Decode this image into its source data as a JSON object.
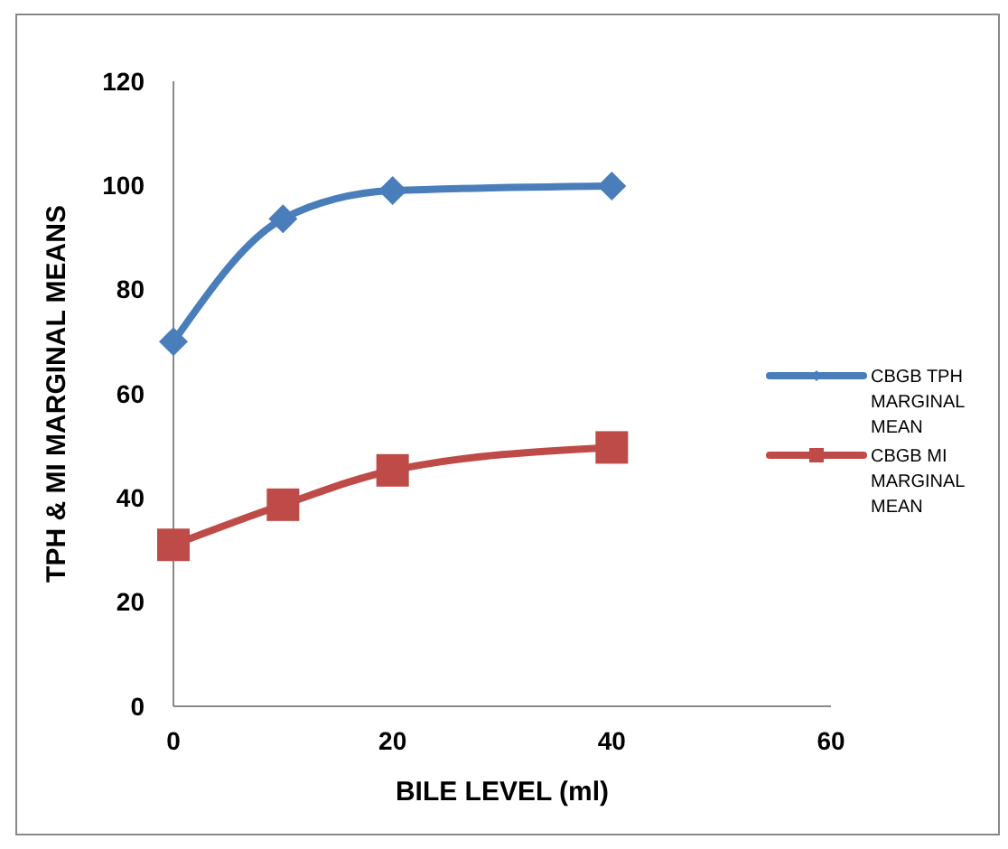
{
  "chart_data": {
    "type": "line",
    "xlabel": "BILE LEVEL (ml)",
    "ylabel": "TPH & MI MARGINAL MEANS",
    "x": [
      0,
      10,
      20,
      40
    ],
    "xlim": [
      0,
      60
    ],
    "xticks": [
      0,
      20,
      40,
      60
    ],
    "ylim": [
      0,
      120
    ],
    "yticks": [
      0,
      20,
      40,
      60,
      80,
      100,
      120
    ],
    "grid": false,
    "legend": "right",
    "series": [
      {
        "name": "CBGB TPH MARGINAL MEAN",
        "color": "#4a7ebb",
        "marker": "diamond",
        "values": [
          70,
          93.6,
          99,
          99.9
        ]
      },
      {
        "name": "CBGB MI MARGINAL MEAN",
        "color": "#be4b48",
        "marker": "square",
        "values": [
          31,
          38.7,
          45.3,
          49.7
        ]
      }
    ]
  }
}
